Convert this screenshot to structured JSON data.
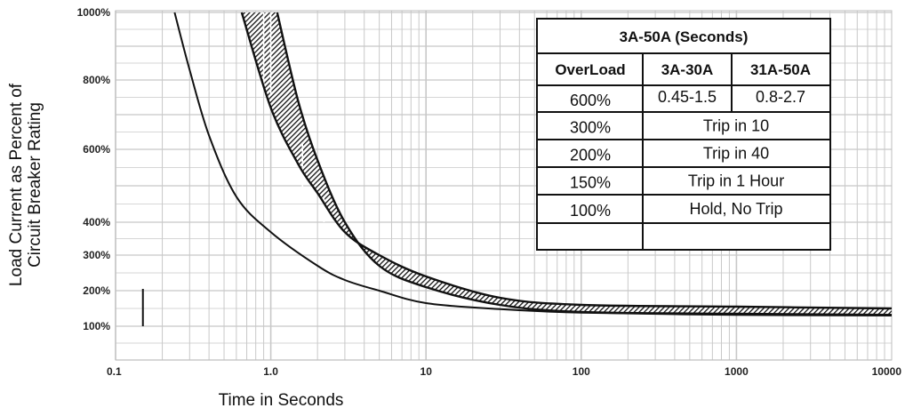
{
  "chart_data": {
    "type": "line",
    "xlabel": "Time in Seconds",
    "ylabel_lines": [
      "Load Current as Percent of",
      "Circuit Breaker Rating"
    ],
    "x_scale": "log",
    "xlim": [
      0.1,
      10000
    ],
    "x_ticks": [
      {
        "value": 0.1,
        "label": "0.1"
      },
      {
        "value": 1,
        "label": "1.0"
      },
      {
        "value": 10,
        "label": "10"
      },
      {
        "value": 100,
        "label": "100"
      },
      {
        "value": 1000,
        "label": "1000"
      },
      {
        "value": 10000,
        "label": "10000"
      }
    ],
    "y_ticks": [
      {
        "value": 100,
        "label": "100%"
      },
      {
        "value": 200,
        "label": "200%"
      },
      {
        "value": 300,
        "label": "300%"
      },
      {
        "value": 400,
        "label": "400%"
      },
      {
        "value": 600,
        "label": "600%"
      },
      {
        "value": 800,
        "label": "800%"
      },
      {
        "value": 1000,
        "label": "1000%"
      }
    ],
    "grid": true,
    "series": [
      {
        "role": "band-lower-edge",
        "x": [
          0.24,
          0.3,
          0.4,
          0.6,
          1.0,
          2.0,
          3.0,
          5.0,
          10,
          30,
          100,
          1000,
          10000
        ],
        "y": [
          1000,
          830,
          640,
          470,
          370,
          270,
          230,
          200,
          165,
          148,
          138,
          132,
          130
        ]
      },
      {
        "role": "band-upper-edge",
        "x": [
          1.1,
          1.5,
          2.0,
          3.0,
          5.0,
          10,
          30,
          100,
          1000,
          10000
        ],
        "y": [
          1000,
          740,
          570,
          400,
          270,
          210,
          160,
          140,
          135,
          132
        ]
      },
      {
        "role": "band-outer-edge",
        "x": [
          0.65,
          1.0,
          1.5,
          2.0,
          3.0,
          5.0,
          10,
          30,
          100,
          1000,
          10000
        ],
        "y": [
          1000,
          720,
          560,
          480,
          370,
          300,
          240,
          180,
          160,
          155,
          150
        ]
      }
    ],
    "table": {
      "title": "3A-50A (Seconds)",
      "header": [
        "OverLoad",
        "3A-30A",
        "31A-50A"
      ],
      "rows": [
        [
          "600%",
          "0.45-1.5",
          "0.8-2.7"
        ],
        [
          "300%",
          "Trip in 10"
        ],
        [
          "200%",
          "Trip in 40"
        ],
        [
          "150%",
          "Trip in 1 Hour"
        ],
        [
          "100%",
          "Hold, No Trip"
        ]
      ]
    }
  }
}
